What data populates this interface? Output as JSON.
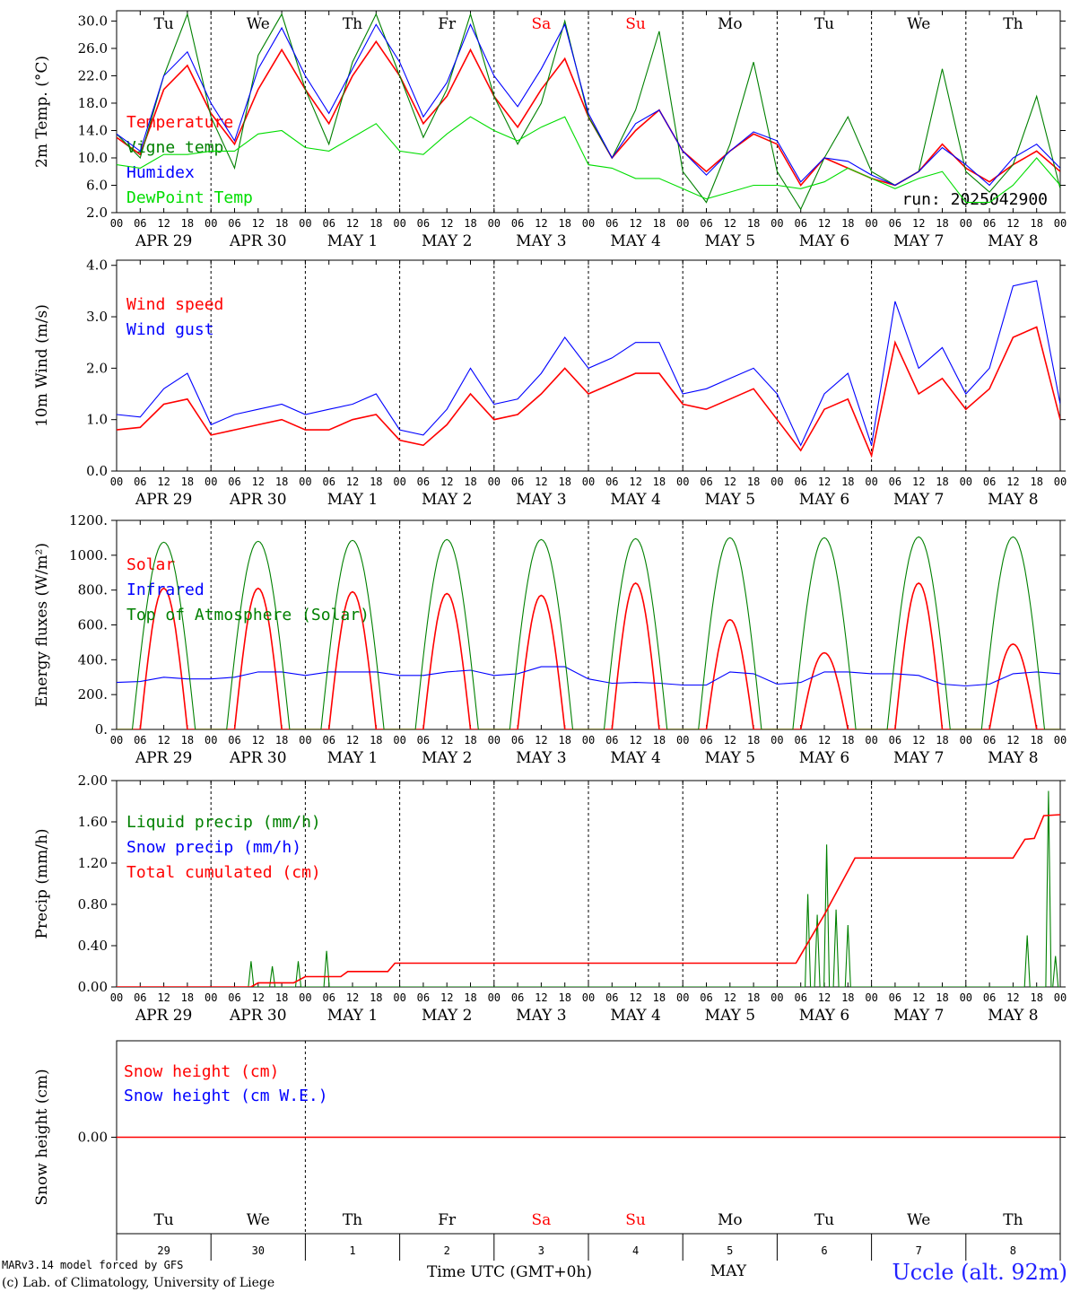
{
  "day_names": [
    {
      "label": "Tu",
      "color": "#000000"
    },
    {
      "label": "We",
      "color": "#000000"
    },
    {
      "label": "Th",
      "color": "#000000"
    },
    {
      "label": "Fr",
      "color": "#000000"
    },
    {
      "label": "Sa",
      "color": "#ff0000"
    },
    {
      "label": "Su",
      "color": "#ff0000"
    },
    {
      "label": "Mo",
      "color": "#000000"
    },
    {
      "label": "Tu",
      "color": "#000000"
    },
    {
      "label": "We",
      "color": "#000000"
    },
    {
      "label": "Th",
      "color": "#000000"
    }
  ],
  "date_labels": [
    "APR 29",
    "APR 30",
    "MAY  1",
    "MAY  2",
    "MAY  3",
    "MAY  4",
    "MAY  5",
    "MAY  6",
    "MAY  7",
    "MAY  8"
  ],
  "hour_ticks": [
    "00",
    "06",
    "12",
    "18"
  ],
  "bottom_axis": {
    "day_numbers": [
      "29",
      "30",
      "1",
      "2",
      "3",
      "4",
      "5",
      "6",
      "7",
      "8"
    ],
    "time_label": "Time UTC (GMT+0h)",
    "month_label": "MAY"
  },
  "footer": {
    "credit_line1": "MARv3.14 model forced by GFS",
    "credit_line2": "(c) Lab. of Climatology, University of Liege",
    "station": "Uccle (alt. 92m)"
  },
  "colors": {
    "red": "#ff0000",
    "green": "#008000",
    "blue": "#0000ff",
    "lightgreen": "#00dd00"
  },
  "chart_data": [
    {
      "type": "line",
      "id": "temp",
      "ylabel": "2m Temp. (°C)",
      "yticks": [
        "30.0",
        "26.0",
        "22.0",
        "18.0",
        "14.0",
        "10.0",
        "6.0",
        "2.0"
      ],
      "ylim": [
        2,
        31.5
      ],
      "run_label": "run: 2025042900",
      "series": [
        {
          "name": "Temperature",
          "color": "#ff0000",
          "values": [
            13,
            10.5,
            20,
            23.5,
            16.5,
            12,
            20,
            25.8,
            20,
            15,
            22,
            27,
            22,
            15,
            19,
            25.8,
            19,
            14.5,
            20,
            24.5,
            16,
            10,
            14,
            17,
            11,
            8,
            11,
            13.5,
            12,
            6,
            10,
            8.5,
            7,
            6,
            8,
            12,
            8.5,
            6.5,
            9,
            11,
            8
          ]
        },
        {
          "name": "Vigne temp",
          "color": "#008000",
          "values": [
            13.5,
            10,
            22,
            31,
            16,
            8.5,
            25,
            31,
            20,
            12,
            24,
            31,
            22,
            13,
            20,
            31,
            19,
            12,
            18,
            30,
            16,
            10,
            17,
            28.5,
            8,
            3.5,
            12,
            24,
            8,
            2.5,
            10,
            16,
            8,
            6,
            8,
            23,
            8,
            5,
            9,
            19,
            5.5
          ]
        },
        {
          "name": "Humidex",
          "color": "#0000ff",
          "values": [
            13.5,
            11,
            22,
            25.5,
            18,
            12.5,
            23,
            29,
            22,
            16.5,
            23,
            29.5,
            24,
            16,
            21,
            29.5,
            22,
            17.5,
            23,
            29.5,
            16.5,
            10,
            15,
            17,
            11,
            7.5,
            11,
            13.8,
            12.5,
            6.5,
            10,
            9.5,
            7.5,
            6,
            8,
            11.5,
            9,
            6,
            10,
            12,
            8.5
          ]
        },
        {
          "name": "DewPoint Temp",
          "color": "#00dd00",
          "values": [
            9,
            8.5,
            10.5,
            10.5,
            11,
            11,
            13.5,
            14,
            11.5,
            11,
            13,
            15,
            11,
            10.5,
            13.5,
            16,
            14,
            12.5,
            14.5,
            16,
            9,
            8.5,
            7,
            7,
            5.5,
            4,
            5,
            6,
            6,
            5.5,
            6.5,
            8.5,
            7,
            5.5,
            7,
            8,
            3.5,
            3.5,
            6,
            10,
            6
          ]
        }
      ]
    },
    {
      "type": "line",
      "id": "wind",
      "ylabel": "10m Wind (m/s)",
      "yticks": [
        "4.0",
        "3.0",
        "2.0",
        "1.0",
        "0.0"
      ],
      "ylim": [
        0,
        4.1
      ],
      "series": [
        {
          "name": "Wind speed",
          "color": "#ff0000",
          "values": [
            0.8,
            0.85,
            1.3,
            1.4,
            0.7,
            0.8,
            0.9,
            1.0,
            0.8,
            0.8,
            1.0,
            1.1,
            0.6,
            0.5,
            0.9,
            1.5,
            1.0,
            1.1,
            1.5,
            2.0,
            1.5,
            1.7,
            1.9,
            1.9,
            1.3,
            1.2,
            1.4,
            1.6,
            1.0,
            0.4,
            1.2,
            1.4,
            0.3,
            2.5,
            1.5,
            1.8,
            1.2,
            1.6,
            2.6,
            2.8,
            1.0
          ]
        },
        {
          "name": "Wind gust",
          "color": "#0000ff",
          "values": [
            1.1,
            1.05,
            1.6,
            1.9,
            0.9,
            1.1,
            1.2,
            1.3,
            1.1,
            1.2,
            1.3,
            1.5,
            0.8,
            0.7,
            1.2,
            2.0,
            1.3,
            1.4,
            1.9,
            2.6,
            2.0,
            2.2,
            2.5,
            2.5,
            1.5,
            1.6,
            1.8,
            2.0,
            1.5,
            0.5,
            1.5,
            1.9,
            0.5,
            3.3,
            2.0,
            2.4,
            1.5,
            2.0,
            3.6,
            3.7,
            1.3
          ]
        }
      ]
    },
    {
      "type": "line",
      "id": "energy",
      "ylabel": "Energy fluxes (W/m²)",
      "yticks": [
        "1200.",
        "1000.",
        "800.",
        "600.",
        "400.",
        "200.",
        "0."
      ],
      "ylim": [
        0,
        1200
      ],
      "series": [
        {
          "name": "Solar",
          "color": "#ff0000",
          "peaks": [
            810,
            810,
            790,
            780,
            770,
            840,
            630,
            440,
            840,
            490
          ]
        },
        {
          "name": "Infrared",
          "color": "#0000ff",
          "values": [
            270,
            275,
            300,
            290,
            290,
            300,
            330,
            330,
            310,
            330,
            330,
            330,
            310,
            310,
            330,
            340,
            310,
            320,
            360,
            360,
            290,
            265,
            270,
            265,
            255,
            255,
            330,
            320,
            260,
            270,
            330,
            330,
            320,
            320,
            310,
            260,
            250,
            260,
            320,
            330,
            320
          ]
        },
        {
          "name": "Top of Atmosphere (Solar)",
          "color": "#008000",
          "peaks": [
            1075,
            1080,
            1085,
            1090,
            1090,
            1095,
            1100,
            1100,
            1105,
            1105
          ]
        }
      ]
    },
    {
      "type": "line",
      "id": "precip",
      "ylabel": "Precip (mm/h)",
      "yticks": [
        "2.00",
        "1.60",
        "1.20",
        "0.80",
        "0.40",
        "0.00"
      ],
      "ylim": [
        0,
        2.0
      ],
      "series": [
        {
          "name": "Liquid precip (mm/h)",
          "color": "#008000",
          "spikes": [
            [
              5.7,
              0.25
            ],
            [
              6.6,
              0.2
            ],
            [
              7.7,
              0.25
            ],
            [
              8.9,
              0.35
            ],
            [
              29.3,
              0.9
            ],
            [
              29.7,
              0.7
            ],
            [
              30.1,
              1.38
            ],
            [
              30.5,
              0.75
            ],
            [
              31.0,
              0.6
            ],
            [
              38.6,
              0.5
            ],
            [
              39.5,
              1.9
            ],
            [
              39.8,
              0.3
            ]
          ]
        },
        {
          "name": "Snow precip (mm/h)",
          "color": "#0000ff",
          "values": []
        },
        {
          "name": "Total cumulated (cm)",
          "color": "#ff0000",
          "values": [
            [
              0,
              0
            ],
            [
              5.7,
              0
            ],
            [
              6.0,
              0.04
            ],
            [
              7.5,
              0.04
            ],
            [
              8.0,
              0.1
            ],
            [
              9.5,
              0.1
            ],
            [
              9.8,
              0.15
            ],
            [
              11.5,
              0.15
            ],
            [
              11.8,
              0.23
            ],
            [
              28.8,
              0.23
            ],
            [
              30,
              0.7
            ],
            [
              31.3,
              1.25
            ],
            [
              38,
              1.25
            ],
            [
              38.5,
              1.43
            ],
            [
              38.9,
              1.44
            ],
            [
              39.3,
              1.66
            ],
            [
              40,
              1.67
            ]
          ]
        }
      ]
    },
    {
      "type": "line",
      "id": "snow",
      "ylabel": "Snow height (cm)",
      "yticks": [
        "0.00"
      ],
      "ylim": [
        -1,
        1
      ],
      "series": [
        {
          "name": "Snow height (cm)",
          "color": "#ff0000",
          "values": [
            0,
            0
          ]
        },
        {
          "name": "Snow height (cm W.E.)",
          "color": "#0000ff",
          "values": []
        }
      ]
    }
  ]
}
